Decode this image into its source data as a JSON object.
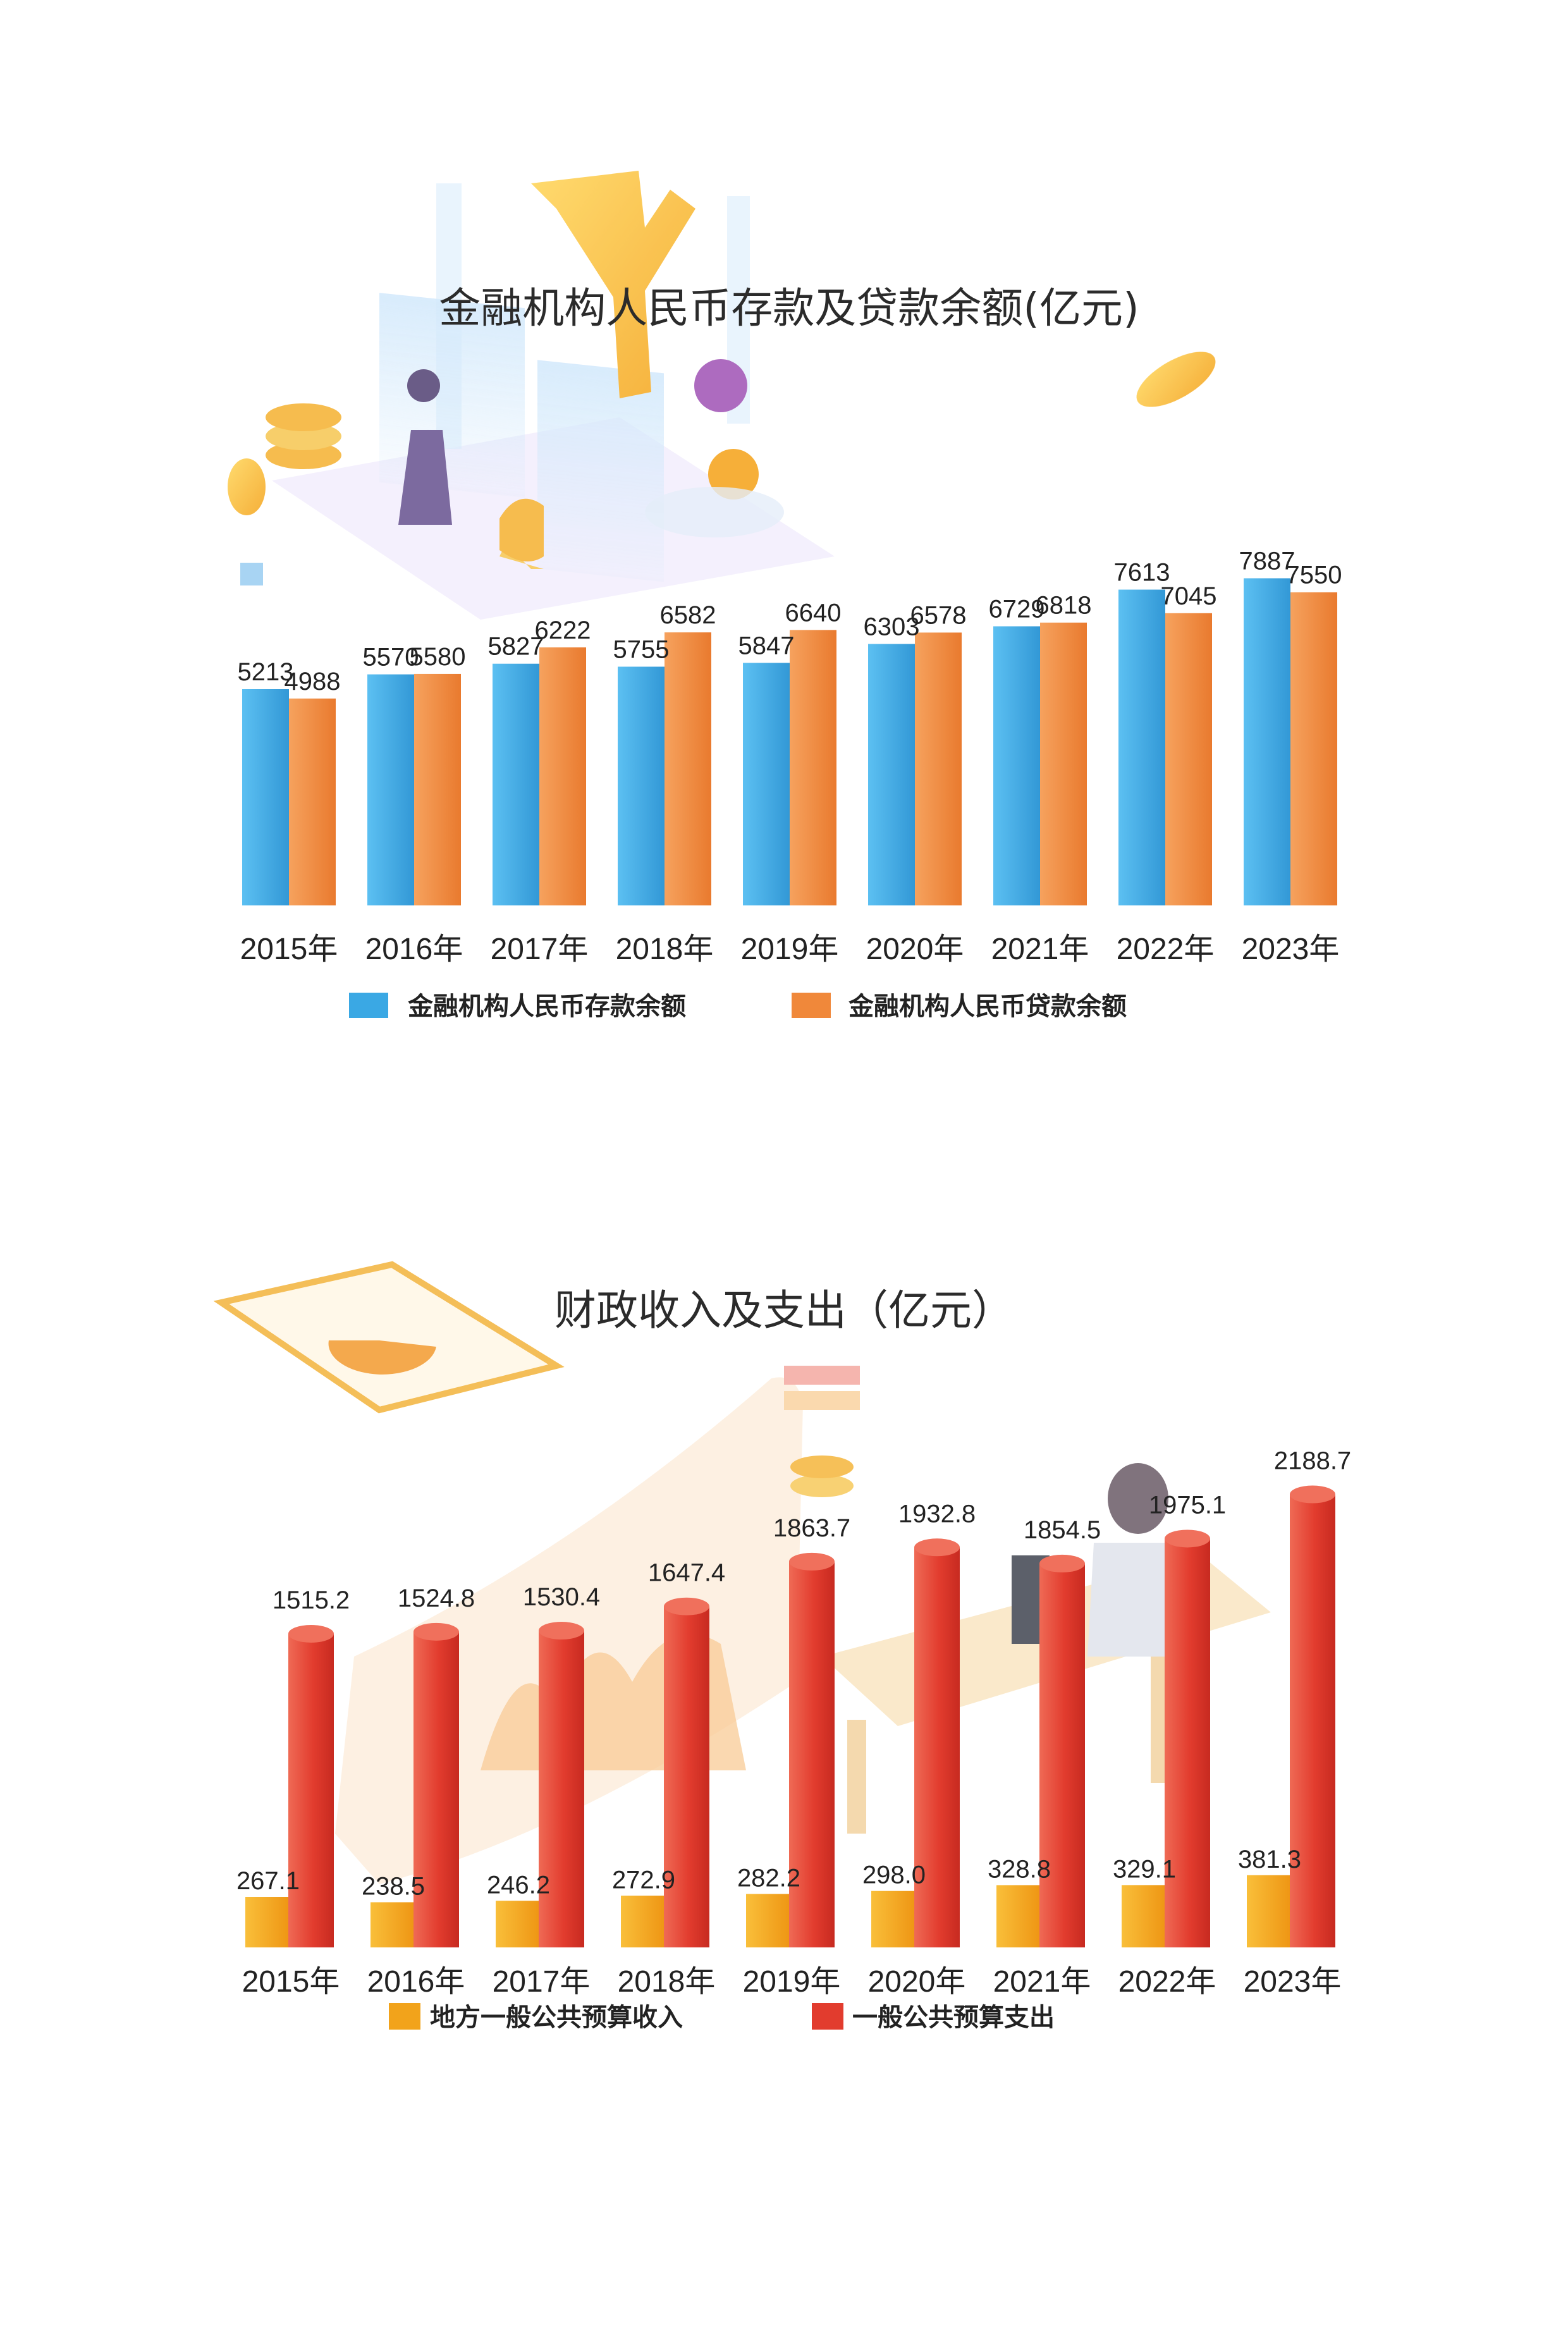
{
  "chart_data": [
    {
      "type": "bar",
      "title": "金融机构人民币存款及贷款余额(亿元)",
      "categories": [
        "2015年",
        "2016年",
        "2017年",
        "2018年",
        "2019年",
        "2020年",
        "2021年",
        "2022年",
        "2023年"
      ],
      "series": [
        {
          "name": "金融机构人民币存款余额",
          "values": [
            5213,
            5570,
            5827,
            5755,
            5847,
            6303,
            6729,
            7613,
            7887
          ],
          "color": "#3aa8e4"
        },
        {
          "name": "金融机构人民币贷款余额",
          "values": [
            4988,
            5580,
            6222,
            6582,
            6640,
            6578,
            6818,
            7045,
            7550
          ],
          "color": "#f0883a"
        }
      ],
      "ylim": [
        0,
        8200
      ],
      "legend": "bottom",
      "grid": false
    },
    {
      "type": "bar",
      "title": "财政收入及支出（亿元）",
      "categories": [
        "2015年",
        "2016年",
        "2017年",
        "2018年",
        "2019年",
        "2020年",
        "2021年",
        "2022年",
        "2023年"
      ],
      "series": [
        {
          "name": "地方一般公共预算收入",
          "values": [
            "267.1",
            "238.5",
            "246.2",
            "272.9",
            "282.2",
            "298.0",
            "328.8",
            "329.1",
            "381.3"
          ],
          "color": "#f2a31b"
        },
        {
          "name": "一般公共预算支出",
          "values": [
            "1515.2",
            "1524.8",
            "1530.4",
            "1647.4",
            "1863.7",
            "1932.8",
            "1854.5",
            "1975.1",
            "2188.7"
          ],
          "color": "#e23c2e"
        }
      ],
      "ylim": [
        0,
        2400
      ],
      "legend": "bottom",
      "grid": false
    }
  ]
}
